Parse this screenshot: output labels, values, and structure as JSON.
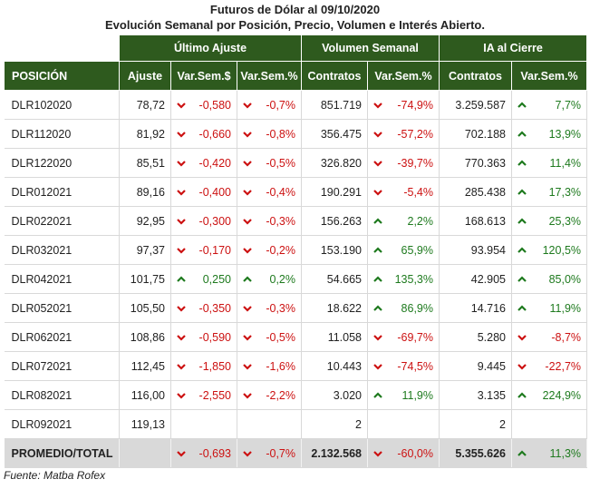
{
  "title": "Futuros de Dólar al 09/10/2020",
  "subtitle": "Evolución Semanal por Posición, Precio, Volumen e Interés Abierto.",
  "groups": {
    "ultimo": "Último Ajuste",
    "volumen": "Volumen Semanal",
    "ia": "IA al Cierre"
  },
  "columns": {
    "posicion": "POSICIÓN",
    "ajuste": "Ajuste",
    "var_abs": "Var.Sem.$",
    "var_pct": "Var.Sem.%",
    "contratos": "Contratos",
    "vol_pct": "Var.Sem.%",
    "ia_contratos": "Contratos",
    "ia_pct": "Var.Sem.%"
  },
  "rows": [
    {
      "pos": "DLR102020",
      "ajuste": "78,72",
      "var_abs": "-0,580",
      "var_abs_dir": "down",
      "var_pct": "-0,7%",
      "var_pct_dir": "down",
      "contratos": "851.719",
      "vol_pct": "-74,9%",
      "vol_dir": "down",
      "ia": "3.259.587",
      "ia_pct": "7,7%",
      "ia_dir": "up"
    },
    {
      "pos": "DLR112020",
      "ajuste": "81,92",
      "var_abs": "-0,660",
      "var_abs_dir": "down",
      "var_pct": "-0,8%",
      "var_pct_dir": "down",
      "contratos": "356.475",
      "vol_pct": "-57,2%",
      "vol_dir": "down",
      "ia": "702.188",
      "ia_pct": "13,9%",
      "ia_dir": "up"
    },
    {
      "pos": "DLR122020",
      "ajuste": "85,51",
      "var_abs": "-0,420",
      "var_abs_dir": "down",
      "var_pct": "-0,5%",
      "var_pct_dir": "down",
      "contratos": "326.820",
      "vol_pct": "-39,7%",
      "vol_dir": "down",
      "ia": "770.363",
      "ia_pct": "11,4%",
      "ia_dir": "up"
    },
    {
      "pos": "DLR012021",
      "ajuste": "89,16",
      "var_abs": "-0,400",
      "var_abs_dir": "down",
      "var_pct": "-0,4%",
      "var_pct_dir": "down",
      "contratos": "190.291",
      "vol_pct": "-5,4%",
      "vol_dir": "down",
      "ia": "285.438",
      "ia_pct": "17,3%",
      "ia_dir": "up"
    },
    {
      "pos": "DLR022021",
      "ajuste": "92,95",
      "var_abs": "-0,300",
      "var_abs_dir": "down",
      "var_pct": "-0,3%",
      "var_pct_dir": "down",
      "contratos": "156.263",
      "vol_pct": "2,2%",
      "vol_dir": "up",
      "ia": "168.613",
      "ia_pct": "25,3%",
      "ia_dir": "up"
    },
    {
      "pos": "DLR032021",
      "ajuste": "97,37",
      "var_abs": "-0,170",
      "var_abs_dir": "down",
      "var_pct": "-0,2%",
      "var_pct_dir": "down",
      "contratos": "153.190",
      "vol_pct": "65,9%",
      "vol_dir": "up",
      "ia": "93.954",
      "ia_pct": "120,5%",
      "ia_dir": "up"
    },
    {
      "pos": "DLR042021",
      "ajuste": "101,75",
      "var_abs": "0,250",
      "var_abs_dir": "up",
      "var_pct": "0,2%",
      "var_pct_dir": "up",
      "contratos": "54.665",
      "vol_pct": "135,3%",
      "vol_dir": "up",
      "ia": "42.905",
      "ia_pct": "85,0%",
      "ia_dir": "up"
    },
    {
      "pos": "DLR052021",
      "ajuste": "105,50",
      "var_abs": "-0,350",
      "var_abs_dir": "down",
      "var_pct": "-0,3%",
      "var_pct_dir": "down",
      "contratos": "18.622",
      "vol_pct": "86,9%",
      "vol_dir": "up",
      "ia": "14.716",
      "ia_pct": "11,9%",
      "ia_dir": "up"
    },
    {
      "pos": "DLR062021",
      "ajuste": "108,86",
      "var_abs": "-0,590",
      "var_abs_dir": "down",
      "var_pct": "-0,5%",
      "var_pct_dir": "down",
      "contratos": "11.058",
      "vol_pct": "-69,7%",
      "vol_dir": "down",
      "ia": "5.280",
      "ia_pct": "-8,7%",
      "ia_dir": "down"
    },
    {
      "pos": "DLR072021",
      "ajuste": "112,45",
      "var_abs": "-1,850",
      "var_abs_dir": "down",
      "var_pct": "-1,6%",
      "var_pct_dir": "down",
      "contratos": "10.443",
      "vol_pct": "-74,5%",
      "vol_dir": "down",
      "ia": "9.445",
      "ia_pct": "-22,7%",
      "ia_dir": "down"
    },
    {
      "pos": "DLR082021",
      "ajuste": "116,00",
      "var_abs": "-2,550",
      "var_abs_dir": "down",
      "var_pct": "-2,2%",
      "var_pct_dir": "down",
      "contratos": "3.020",
      "vol_pct": "11,9%",
      "vol_dir": "up",
      "ia": "3.135",
      "ia_pct": "224,9%",
      "ia_dir": "up"
    },
    {
      "pos": "DLR092021",
      "ajuste": "119,13",
      "var_abs": "",
      "var_abs_dir": "",
      "var_pct": "",
      "var_pct_dir": "",
      "contratos": "2",
      "vol_pct": "",
      "vol_dir": "",
      "ia": "2",
      "ia_pct": "",
      "ia_dir": ""
    }
  ],
  "total": {
    "pos": "PROMEDIO/TOTAL",
    "ajuste": "",
    "var_abs": "-0,693",
    "var_abs_dir": "down",
    "var_pct": "-0,7%",
    "var_pct_dir": "down",
    "contratos": "2.132.568",
    "vol_pct": "-60,0%",
    "vol_dir": "down",
    "ia": "5.355.626",
    "ia_pct": "11,3%",
    "ia_dir": "up"
  },
  "footer": {
    "label": "Fuente:",
    "source": "Matba Rofex"
  },
  "colors": {
    "header_bg": "#2e5a1e",
    "negative": "#cc1111",
    "positive": "#1e7a1e",
    "total_bg": "#d9d9d9"
  },
  "icons": {
    "up": "chevron-up-icon",
    "down": "chevron-down-icon"
  }
}
